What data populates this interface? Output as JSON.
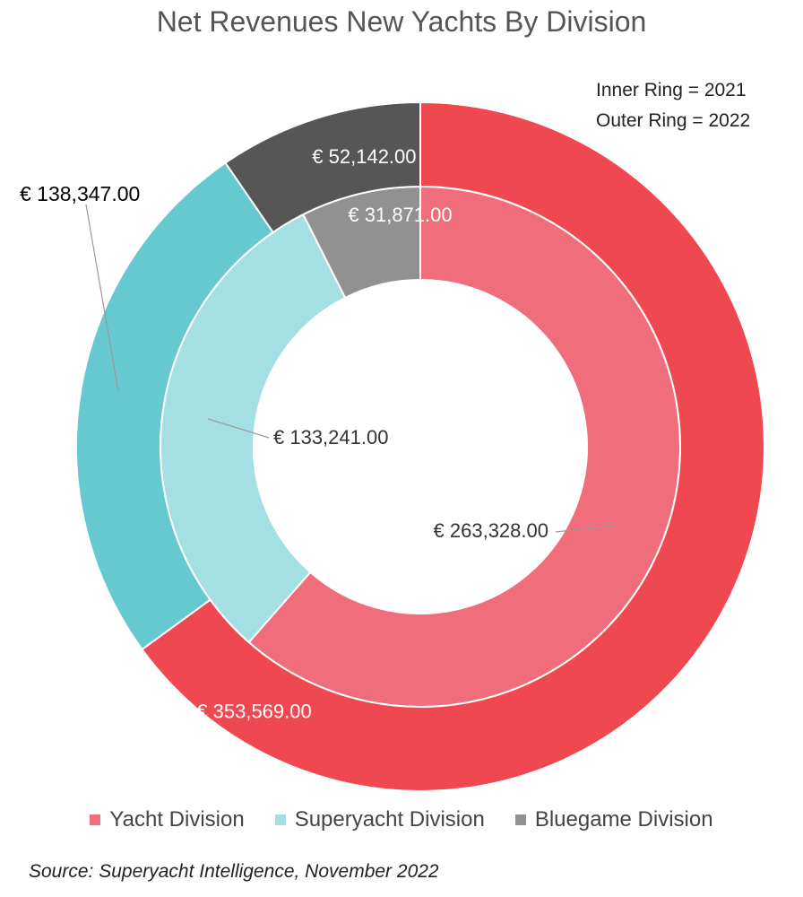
{
  "title": "Net Revenues New Yachts By Division",
  "ring_note": {
    "inner": "Inner Ring = 2021",
    "outer": "Outer Ring = 2022"
  },
  "source": "Source: Superyacht Intelligence, November 2022",
  "chart_data": {
    "type": "pie",
    "subtype": "nested-donut",
    "title": "Net Revenues New Yachts By Division",
    "categories": [
      "Yacht Division",
      "Superyacht Division",
      "Bluegame Division"
    ],
    "series": [
      {
        "ring": "inner",
        "year_note": "Inner Ring = 2021",
        "values": [
          263328.0,
          133241.0,
          31871.0
        ],
        "labels": [
          "€ 263,328.00",
          "€ 133,241.00",
          "€ 31,871.00"
        ],
        "colors": [
          "#f06e7c",
          "#a4dfe3",
          "#919191"
        ]
      },
      {
        "ring": "outer",
        "year_note": "Outer Ring = 2022",
        "values": [
          353569.0,
          138347.0,
          52142.0
        ],
        "labels": [
          "€ 353,569.00",
          "€ 138,347.00",
          "€ 52,142.00"
        ],
        "colors": [
          "#ef4850",
          "#66c9cf",
          "#565656"
        ]
      }
    ],
    "legend": {
      "position": "bottom",
      "items": [
        {
          "label": "Yacht Division",
          "color": "#f06e7c"
        },
        {
          "label": "Superyacht Division",
          "color": "#a4dfe3"
        },
        {
          "label": "Bluegame Division",
          "color": "#919191"
        }
      ]
    }
  }
}
